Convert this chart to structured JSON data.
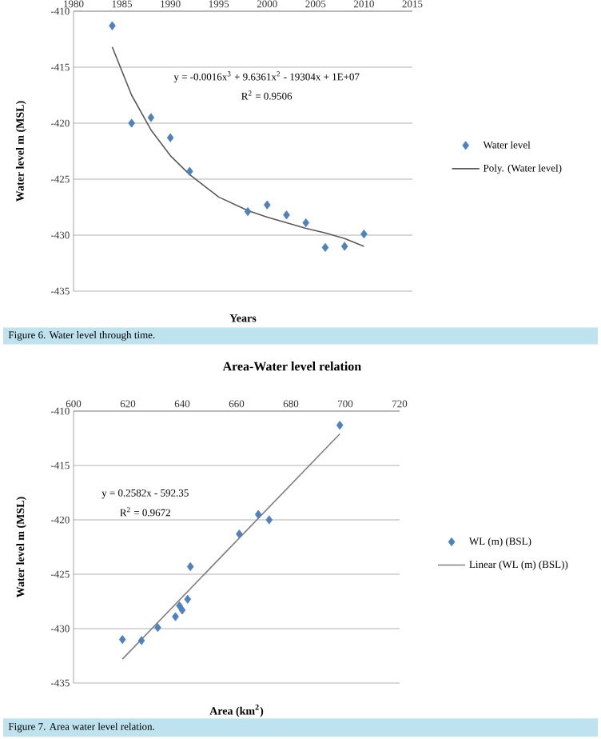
{
  "chart_data": [
    {
      "type": "scatter",
      "xlabel": "Years",
      "ylabel": "Water level m (MSL)",
      "xlim": [
        1980,
        2015
      ],
      "ylim": [
        -435,
        -410
      ],
      "xticks": [
        1980,
        1985,
        1990,
        1995,
        2000,
        2005,
        2010,
        2015
      ],
      "yticks": [
        -435,
        -430,
        -425,
        -420,
        -415,
        -410
      ],
      "grid": "y",
      "legend": "right",
      "annotations": [
        "y = -0.0016x$^{3}$ + 9.6361x$^{2}$ - 19304x + 1E+07",
        "R$^{2}$ = 0.9506",
        "Figure 6. Water level through time."
      ],
      "series": [
        {
          "name": "Water level",
          "marker": "diamond",
          "color": "#4f81bd",
          "x": [
            1984,
            1986,
            1988,
            1990,
            1992,
            1998,
            2000,
            2002,
            2004,
            2006,
            2008,
            2010
          ],
          "values": [
            -411.3,
            -420,
            -419.5,
            -421.3,
            -424.3,
            -427.9,
            -427.3,
            -428.2,
            -428.9,
            -431.1,
            -431,
            -429.9
          ]
        },
        {
          "name": "Poly. (Water level)",
          "type": "line",
          "color": "#595959",
          "x": [
            1984,
            1986,
            1988,
            1990,
            1992,
            1995,
            1998,
            2000,
            2002,
            2004,
            2006,
            2008,
            2010
          ],
          "values": [
            -413.2,
            -417.5,
            -420.6,
            -422.9,
            -424.6,
            -426.6,
            -427.8,
            -428.4,
            -428.9,
            -429.4,
            -429.8,
            -430.3,
            -431.0
          ]
        }
      ]
    },
    {
      "type": "scatter",
      "title": "Area-Water level relation",
      "xlabel": "Area (km$^{2}$)",
      "ylabel": "Water level m (MSL)",
      "xlim": [
        600,
        720
      ],
      "ylim": [
        -435,
        -410
      ],
      "xticks": [
        600,
        620,
        640,
        660,
        680,
        700,
        720
      ],
      "yticks": [
        -435,
        -430,
        -425,
        -420,
        -415,
        -410
      ],
      "grid": "y",
      "legend": "right",
      "annotations": [
        "y = 0.2582x - 592.35",
        "R$^{2}$ = 0.9672",
        "Figure 7. Area water level relation."
      ],
      "series": [
        {
          "name": "WL (m) (BSL)",
          "marker": "diamond",
          "color": "#4f81bd",
          "x": [
            698,
            668,
            672,
            661,
            643,
            642,
            639,
            640,
            637.5,
            631,
            625,
            618
          ],
          "values": [
            -411.3,
            -419.5,
            -420,
            -421.3,
            -424.3,
            -427.3,
            -427.9,
            -428.3,
            -428.9,
            -429.9,
            -431.1,
            -431
          ]
        },
        {
          "name": "Linear (WL (m) (BSL))",
          "type": "line",
          "color": "#7f7f7f",
          "x": [
            618,
            698
          ],
          "values": [
            -432.8,
            -412.1
          ]
        }
      ]
    }
  ]
}
